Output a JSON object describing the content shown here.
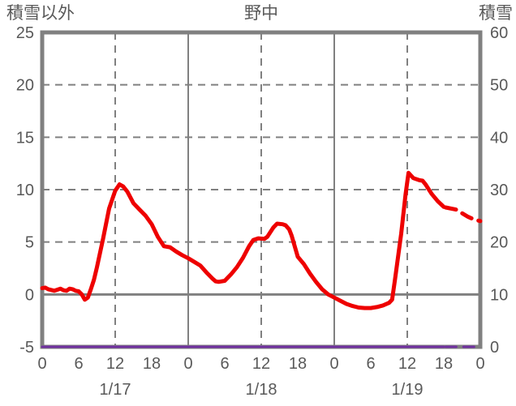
{
  "chart_data": {
    "type": "line",
    "title": "野中",
    "left_axis": {
      "label": "積雪以外",
      "min": -5,
      "max": 25,
      "ticks": [
        25,
        20,
        15,
        10,
        5,
        0,
        -5
      ]
    },
    "right_axis": {
      "label": "積雪",
      "min": 0,
      "max": 60,
      "ticks": [
        60,
        50,
        40,
        30,
        20,
        10,
        0
      ]
    },
    "x_axis": {
      "total_hours": 72,
      "hour_tick_interval": 6,
      "hour_tick_labels": [
        "0",
        "6",
        "12",
        "18",
        "0",
        "6",
        "12",
        "18",
        "0",
        "6",
        "12",
        "18",
        "0"
      ],
      "date_labels": [
        {
          "text": "1/17",
          "hour": 12
        },
        {
          "text": "1/18",
          "hour": 36
        },
        {
          "text": "1/19",
          "hour": 60
        }
      ]
    },
    "gridlines": {
      "h_dashed_values": [
        20,
        15,
        10,
        5
      ],
      "h_solid_values": [
        0
      ],
      "v_dashed_hours": [
        12,
        36,
        60
      ],
      "v_solid_hours": [
        24,
        48
      ]
    },
    "series": [
      {
        "id": "red-line",
        "axis": "left",
        "color": "#EE0000",
        "width": 5,
        "solid_points": [
          [
            0,
            0.6
          ],
          [
            0.5,
            0.65
          ],
          [
            1,
            0.5
          ],
          [
            2,
            0.35
          ],
          [
            2.5,
            0.45
          ],
          [
            3,
            0.55
          ],
          [
            3.5,
            0.4
          ],
          [
            4,
            0.35
          ],
          [
            4.5,
            0.55
          ],
          [
            5,
            0.5
          ],
          [
            5.5,
            0.35
          ],
          [
            6,
            0.3
          ],
          [
            6.5,
            0.0
          ],
          [
            7,
            -0.5
          ],
          [
            7.5,
            -0.3
          ],
          [
            8,
            0.5
          ],
          [
            8.5,
            1.4
          ],
          [
            9,
            2.6
          ],
          [
            10,
            5.3
          ],
          [
            11,
            8.2
          ],
          [
            12,
            9.9
          ],
          [
            12.7,
            10.5
          ],
          [
            13.3,
            10.3
          ],
          [
            14,
            9.8
          ],
          [
            15,
            8.7
          ],
          [
            16,
            8.1
          ],
          [
            17,
            7.5
          ],
          [
            18,
            6.7
          ],
          [
            19,
            5.5
          ],
          [
            20,
            4.6
          ],
          [
            21,
            4.5
          ],
          [
            22,
            4.1
          ],
          [
            23,
            3.75
          ],
          [
            24,
            3.45
          ],
          [
            25,
            3.1
          ],
          [
            26,
            2.75
          ],
          [
            27,
            2.1
          ],
          [
            28,
            1.5
          ],
          [
            28.5,
            1.25
          ],
          [
            29,
            1.2
          ],
          [
            30,
            1.3
          ],
          [
            31,
            1.9
          ],
          [
            32,
            2.6
          ],
          [
            33,
            3.5
          ],
          [
            34,
            4.6
          ],
          [
            34.7,
            5.2
          ],
          [
            35.5,
            5.35
          ],
          [
            36.5,
            5.3
          ],
          [
            37,
            5.5
          ],
          [
            38,
            6.4
          ],
          [
            38.6,
            6.75
          ],
          [
            39.5,
            6.7
          ],
          [
            40,
            6.6
          ],
          [
            40.6,
            6.2
          ],
          [
            41,
            5.6
          ],
          [
            42,
            3.6
          ],
          [
            43,
            2.9
          ],
          [
            44,
            2.0
          ],
          [
            45,
            1.2
          ],
          [
            46,
            0.5
          ],
          [
            47,
            0.0
          ],
          [
            48,
            -0.3
          ],
          [
            49,
            -0.6
          ],
          [
            50,
            -0.9
          ],
          [
            51,
            -1.1
          ],
          [
            52,
            -1.25
          ],
          [
            53,
            -1.3
          ],
          [
            54,
            -1.3
          ],
          [
            55,
            -1.2
          ],
          [
            56,
            -1.05
          ],
          [
            57,
            -0.8
          ],
          [
            57.5,
            -0.5
          ],
          [
            58,
            1.5
          ],
          [
            59,
            5.8
          ],
          [
            59.7,
            9.5
          ],
          [
            60.2,
            11.6
          ],
          [
            61,
            11.1
          ],
          [
            62,
            10.9
          ],
          [
            62.5,
            10.85
          ],
          [
            63,
            10.5
          ],
          [
            64,
            9.6
          ],
          [
            65,
            8.9
          ],
          [
            66,
            8.35
          ]
        ],
        "dashed_points": [
          [
            66.3,
            8.3
          ],
          [
            68,
            8.1
          ],
          [
            69,
            7.75
          ],
          [
            70,
            7.4
          ],
          [
            71,
            7.15
          ],
          [
            72,
            7.0
          ]
        ]
      },
      {
        "id": "purple-line",
        "axis": "right",
        "color": "#7030A0",
        "width": 3,
        "solid_points": [
          [
            0,
            0
          ],
          [
            66,
            0
          ]
        ],
        "dashed_points": [
          [
            66.3,
            0
          ],
          [
            72,
            0
          ]
        ]
      }
    ],
    "colors": {
      "grid": "#808080",
      "border": "#808080",
      "text": "#595959",
      "background": "#ffffff"
    },
    "legend": "none"
  }
}
